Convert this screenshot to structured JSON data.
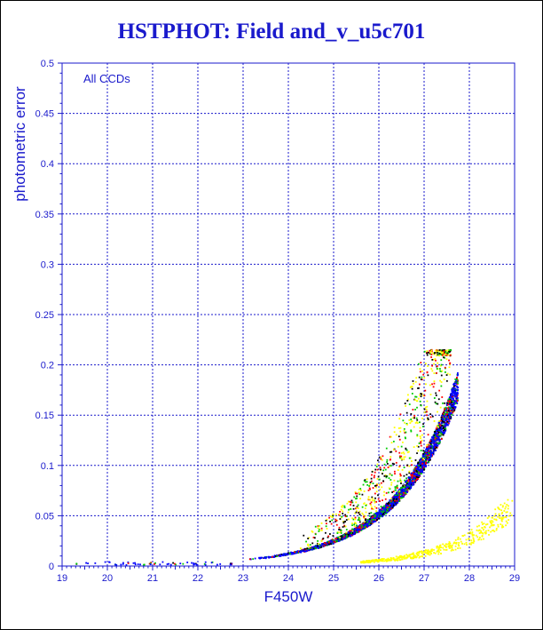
{
  "chart_data": {
    "type": "scatter",
    "title": "HSTPHOT: Field and_v_u5c701",
    "xlabel": "F450W",
    "ylabel": "photometric error",
    "xlim": [
      19,
      29
    ],
    "ylim": [
      0,
      0.5
    ],
    "xticks": [
      "19",
      "20",
      "21",
      "22",
      "23",
      "24",
      "25",
      "26",
      "27",
      "28",
      "29"
    ],
    "yticks": [
      "0",
      "0.05",
      "0.1",
      "0.15",
      "0.2",
      "0.25",
      "0.3",
      "0.35",
      "0.4",
      "0.45",
      "0.5"
    ],
    "annotation": "All CCDs",
    "grid": true,
    "error_cutoff": 0.215,
    "series": [
      {
        "color": "#0000ff",
        "points": [
          [
            23.1,
            0.008
          ],
          [
            23.5,
            0.01
          ],
          [
            24.0,
            0.014
          ],
          [
            24.5,
            0.018
          ],
          [
            25.0,
            0.024
          ],
          [
            25.5,
            0.034
          ],
          [
            26.0,
            0.05
          ],
          [
            26.4,
            0.072
          ],
          [
            26.8,
            0.105
          ],
          [
            27.1,
            0.145
          ],
          [
            27.4,
            0.185
          ],
          [
            27.7,
            0.215
          ]
        ]
      },
      {
        "color": "#00cc00",
        "points": [
          [
            24.2,
            0.016
          ],
          [
            25.1,
            0.03
          ],
          [
            25.8,
            0.052
          ],
          [
            26.3,
            0.08
          ],
          [
            26.7,
            0.115
          ],
          [
            27.0,
            0.15
          ],
          [
            27.3,
            0.19
          ]
        ]
      },
      {
        "color": "#ff0000",
        "points": [
          [
            23.8,
            0.013
          ],
          [
            24.7,
            0.022
          ],
          [
            25.6,
            0.04
          ],
          [
            26.2,
            0.065
          ],
          [
            26.6,
            0.095
          ],
          [
            27.0,
            0.135
          ],
          [
            27.6,
            0.2
          ]
        ]
      },
      {
        "color": "#000000",
        "points": [
          [
            24.6,
            0.025
          ],
          [
            25.3,
            0.045
          ],
          [
            25.7,
            0.07
          ],
          [
            26.0,
            0.1
          ],
          [
            26.4,
            0.13
          ],
          [
            26.8,
            0.17
          ],
          [
            27.1,
            0.21
          ]
        ]
      },
      {
        "color": "#ffff00",
        "points": [
          [
            25.9,
            0.006
          ],
          [
            26.5,
            0.01
          ],
          [
            27.0,
            0.016
          ],
          [
            27.5,
            0.025
          ],
          [
            28.0,
            0.04
          ],
          [
            28.5,
            0.065
          ],
          [
            28.9,
            0.1
          ]
        ]
      }
    ]
  }
}
